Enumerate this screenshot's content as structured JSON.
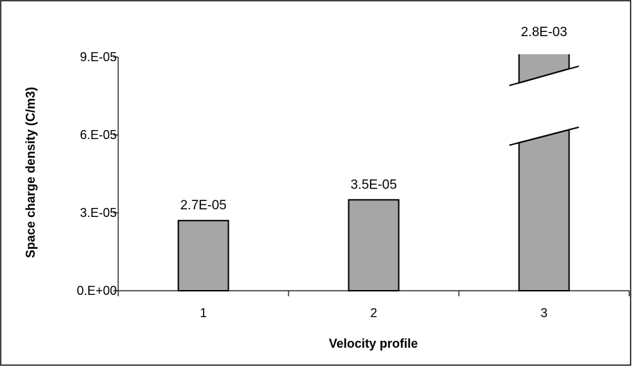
{
  "chart_data": {
    "type": "bar",
    "title": "",
    "xlabel": "Velocity profile",
    "ylabel": "Space charge density (C/m3)",
    "categories": [
      "1",
      "2",
      "3"
    ],
    "values": [
      2.7e-05,
      3.5e-05,
      0.0028
    ],
    "data_labels": [
      "2.7E-05",
      "3.5E-05",
      "2.8E-03"
    ],
    "ylim": [
      0,
      9e-05
    ],
    "y_ticks": [
      0,
      3e-05,
      6e-05,
      9e-05
    ],
    "y_tick_labels": [
      "0.E+00",
      "3.E-05",
      "6.E-05",
      "9.E-05"
    ],
    "axis_break": {
      "category": "3",
      "note": "bar exceeds axis range, drawn with a broken bar"
    },
    "grid": false,
    "legend": "none",
    "colors": {
      "bar_fill": "#a6a6a6",
      "bar_stroke": "#000000",
      "frame": "#000000"
    }
  }
}
